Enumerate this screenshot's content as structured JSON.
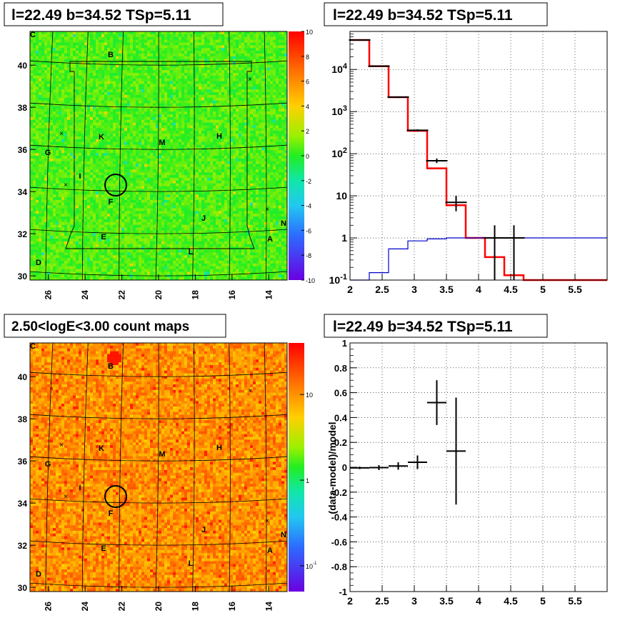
{
  "panels": {
    "tl": {
      "title": "l=22.49 b=34.52 TSp=5.11",
      "xticks": [
        "26",
        "24",
        "22",
        "20",
        "18",
        "16",
        "14"
      ],
      "yticks": [
        "30",
        "32",
        "34",
        "36",
        "38",
        "40"
      ],
      "colorbar": {
        "ticks": [
          "10",
          "8",
          "6",
          "4",
          "2",
          "0",
          "-2",
          "-4",
          "-6",
          "-8",
          "-10"
        ],
        "range": [
          -10,
          10
        ]
      },
      "labels": [
        "C",
        "B",
        "K",
        "M",
        "H",
        "G",
        "I",
        "F",
        "J",
        "N",
        "E",
        "A",
        "L",
        "D"
      ]
    },
    "tr": {
      "title": "l=22.49 b=34.52 TSp=5.11",
      "xticks": [
        "2",
        "2.5",
        "3",
        "3.5",
        "4",
        "4.5",
        "5",
        "5.5"
      ],
      "yticks": [
        "10^-1",
        "1",
        "10",
        "10^2",
        "10^3",
        "10^4"
      ]
    },
    "bl": {
      "title": "2.50<logE<3.00 count maps",
      "xticks": [
        "26",
        "24",
        "22",
        "20",
        "18",
        "16",
        "14"
      ],
      "yticks": [
        "30",
        "32",
        "34",
        "36",
        "38",
        "40"
      ],
      "colorbar": {
        "ticks": [
          "10",
          "1",
          "10^-1"
        ]
      },
      "labels": [
        "C",
        "B",
        "K",
        "M",
        "H",
        "G",
        "I",
        "F",
        "J",
        "N",
        "E",
        "A",
        "L",
        "D"
      ]
    },
    "br": {
      "title": "l=22.49 b=34.52 TSp=5.11",
      "ylabel": "(data-model)/model",
      "xticks": [
        "2",
        "2.5",
        "3",
        "3.5",
        "4",
        "4.5",
        "5",
        "5.5"
      ],
      "yticks": [
        "1",
        "0.8",
        "0.6",
        "0.4",
        "0.2",
        "0",
        "-0.2",
        "-0.4",
        "-0.6",
        "-0.8",
        "-1"
      ]
    }
  },
  "chart_data": [
    {
      "type": "heatmap",
      "title": "l=22.49 b=34.52 TSp=5.11",
      "x_range": [
        27,
        13
      ],
      "y_range": [
        29.8,
        41.6
      ],
      "color_range": [
        -10,
        10
      ],
      "source_position": [
        22.49,
        34.52
      ]
    },
    {
      "type": "line",
      "title": "l=22.49 b=34.52 TSp=5.11",
      "xlim": [
        2,
        6
      ],
      "ylim": [
        0.1,
        80000
      ],
      "log_y": true,
      "grid": true,
      "bin_edges": [
        2.0,
        2.3,
        2.6,
        2.9,
        3.2,
        3.5,
        3.8,
        4.1,
        4.4,
        4.7,
        5.0,
        5.3,
        5.6,
        6.0
      ],
      "series": [
        {
          "name": "",
          "color": "#ff0000",
          "values": [
            50000,
            12000,
            2200,
            350,
            45,
            6,
            1.0,
            0.35,
            0.13,
            0.1,
            0.1,
            0.1,
            0.1
          ]
        },
        {
          "name": "",
          "color": "#0000cc",
          "values": [
            0.1,
            0.15,
            0.55,
            0.85,
            0.95,
            1.0,
            1.0,
            1.0,
            1.0,
            1.0,
            1.0,
            1.0,
            1.0
          ]
        }
      ],
      "points": [
        {
          "x": 2.15,
          "y": 50000,
          "ylo": 49700,
          "yhi": 50300
        },
        {
          "x": 2.45,
          "y": 12000,
          "ylo": 11800,
          "yhi": 12200
        },
        {
          "x": 2.75,
          "y": 2200,
          "ylo": 2100,
          "yhi": 2300
        },
        {
          "x": 3.05,
          "y": 360,
          "ylo": 340,
          "yhi": 380
        },
        {
          "x": 3.35,
          "y": 68,
          "ylo": 60,
          "yhi": 77
        },
        {
          "x": 3.65,
          "y": 7,
          "ylo": 4.3,
          "yhi": 10
        },
        {
          "x": 4.25,
          "y": 1,
          "ylo": 0.1,
          "yhi": 2
        },
        {
          "x": 4.55,
          "y": 1,
          "ylo": 0.1,
          "yhi": 2
        }
      ]
    },
    {
      "type": "heatmap",
      "title": "2.50<logE<3.00 count maps",
      "x_range": [
        27,
        13
      ],
      "y_range": [
        29.8,
        41.6
      ],
      "color_scale": "log",
      "color_range": [
        0.05,
        40
      ],
      "source_position": [
        22.49,
        34.52
      ]
    },
    {
      "type": "scatter",
      "title": "l=22.49 b=34.52 TSp=5.11",
      "ylabel": "(data-model)/model",
      "xlim": [
        2,
        6
      ],
      "ylim": [
        -1,
        1
      ],
      "grid": true,
      "points": [
        {
          "x": 2.15,
          "y": -0.005,
          "xerr": 0.15,
          "yerr": 0.01
        },
        {
          "x": 2.45,
          "y": -0.003,
          "xerr": 0.15,
          "yerr": 0.02
        },
        {
          "x": 2.75,
          "y": 0.01,
          "xerr": 0.15,
          "yerr": 0.03
        },
        {
          "x": 3.05,
          "y": 0.04,
          "xerr": 0.15,
          "yerr": 0.055
        },
        {
          "x": 3.35,
          "y": 0.52,
          "xerr": 0.15,
          "yerr": 0.18
        },
        {
          "x": 3.65,
          "y": 0.13,
          "xerr": 0.15,
          "yerr": 0.43
        }
      ]
    }
  ]
}
